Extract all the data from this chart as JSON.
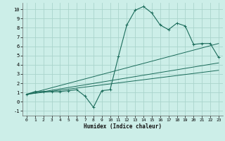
{
  "xlabel": "Humidex (Indice chaleur)",
  "bg_color": "#cceee8",
  "grid_color": "#aad4cc",
  "line_color": "#1a6b5a",
  "xlim": [
    -0.5,
    23.5
  ],
  "ylim": [
    -1.5,
    10.7
  ],
  "xticks": [
    0,
    1,
    2,
    3,
    4,
    5,
    6,
    7,
    8,
    9,
    10,
    11,
    12,
    13,
    14,
    15,
    16,
    17,
    18,
    19,
    20,
    21,
    22,
    23
  ],
  "yticks": [
    -1,
    0,
    1,
    2,
    3,
    4,
    5,
    6,
    7,
    8,
    9,
    10
  ],
  "main_line_x": [
    0,
    1,
    2,
    3,
    4,
    5,
    6,
    7,
    8,
    9,
    10,
    11,
    12,
    13,
    14,
    15,
    16,
    17,
    18,
    19,
    20,
    21,
    22,
    23
  ],
  "main_line_y": [
    0.8,
    1.1,
    1.1,
    1.1,
    1.1,
    1.2,
    1.3,
    0.6,
    -0.6,
    1.2,
    1.3,
    4.9,
    8.3,
    9.9,
    10.3,
    9.6,
    8.3,
    7.8,
    8.5,
    8.2,
    6.2,
    6.3,
    6.3,
    4.8
  ],
  "ref_lines": [
    {
      "x": [
        0,
        23
      ],
      "y": [
        0.8,
        6.3
      ]
    },
    {
      "x": [
        0,
        23
      ],
      "y": [
        0.8,
        4.2
      ]
    },
    {
      "x": [
        0,
        23
      ],
      "y": [
        0.8,
        3.4
      ]
    }
  ]
}
